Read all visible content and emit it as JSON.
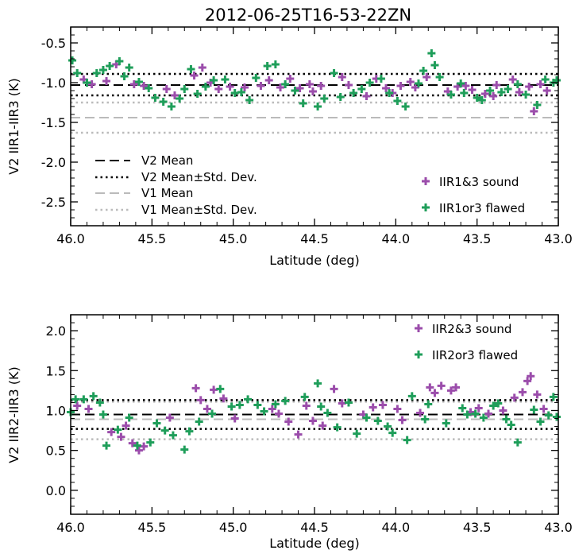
{
  "title": "2012-06-25T16-53-22ZN",
  "colors": {
    "sound": "#9b4dab",
    "flawed": "#1f9e5a",
    "v2": "#000000",
    "v1": "#bbbbbb"
  },
  "chart_data": [
    {
      "type": "scatter",
      "xlabel": "Latitude (deg)",
      "ylabel": "V2 IIR1-IIR3 (K)",
      "xlim": [
        46.0,
        43.0
      ],
      "ylim": [
        -2.8,
        -0.3
      ],
      "xticks": [
        "46.0",
        "45.5",
        "45.0",
        "44.5",
        "44.0",
        "43.5",
        "43.0"
      ],
      "yticks": [
        "-0.5",
        "-1.0",
        "-1.5",
        "-2.0",
        "-2.5"
      ],
      "lines": {
        "v2_mean": -1.03,
        "v2_std_upper": -0.89,
        "v2_std_lower": -1.16,
        "v1_mean": -1.44,
        "v1_std_upper": -1.25,
        "v1_std_lower": -1.63
      },
      "line_legend": [
        "V2 Mean",
        "V2 Mean±Std. Dev.",
        "V1 Mean",
        "V1 Mean±Std. Dev."
      ],
      "marker_legend": [
        "IIR1&3 sound",
        "IIR1or3 flawed"
      ],
      "series": [
        {
          "name": "IIR1&3 sound",
          "x": [
            45.92,
            45.87,
            45.78,
            45.72,
            45.61,
            45.55,
            45.41,
            45.36,
            45.24,
            45.19,
            45.14,
            45.09,
            45.02,
            44.93,
            44.83,
            44.78,
            44.71,
            44.65,
            44.59,
            44.53,
            44.51,
            44.46,
            44.33,
            44.29,
            44.18,
            44.12,
            44.06,
            44.02,
            43.97,
            43.91,
            43.88,
            43.81,
            43.68,
            43.62,
            43.57,
            43.53,
            43.45,
            43.4,
            43.38,
            43.28,
            43.24,
            43.18,
            43.15,
            43.11,
            43.07
          ],
          "y": [
            -0.96,
            -1.02,
            -0.98,
            -0.77,
            -1.02,
            -1.04,
            -1.08,
            -1.16,
            -0.91,
            -0.81,
            -1.0,
            -1.08,
            -1.05,
            -1.06,
            -1.04,
            -0.97,
            -1.06,
            -0.95,
            -1.07,
            -1.02,
            -1.11,
            -1.04,
            -0.93,
            -1.03,
            -1.17,
            -0.95,
            -1.07,
            -1.13,
            -1.04,
            -0.99,
            -1.06,
            -0.93,
            -1.11,
            -1.05,
            -1.04,
            -1.09,
            -1.14,
            -1.17,
            -1.03,
            -0.96,
            -1.12,
            -1.05,
            -1.36,
            -1.02,
            -1.1
          ]
        },
        {
          "name": "IIR1or3 flawed",
          "x": [
            45.99,
            45.96,
            45.9,
            45.84,
            45.8,
            45.76,
            45.7,
            45.67,
            45.64,
            45.58,
            45.52,
            45.48,
            45.43,
            45.38,
            45.33,
            45.3,
            45.26,
            45.22,
            45.17,
            45.12,
            45.05,
            44.99,
            44.95,
            44.9,
            44.86,
            44.79,
            44.74,
            44.68,
            44.62,
            44.57,
            44.48,
            44.44,
            44.38,
            44.34,
            44.26,
            44.21,
            44.16,
            44.09,
            44.04,
            43.99,
            43.94,
            43.86,
            43.83,
            43.78,
            43.76,
            43.73,
            43.66,
            43.6,
            43.58,
            43.5,
            43.47,
            43.42,
            43.35,
            43.31,
            43.25,
            43.2,
            43.13,
            43.08,
            43.03,
            43.01
          ],
          "y": [
            -0.72,
            -0.88,
            -1.0,
            -0.88,
            -0.84,
            -0.79,
            -0.73,
            -0.92,
            -0.81,
            -0.99,
            -1.07,
            -1.19,
            -1.24,
            -1.3,
            -1.2,
            -1.08,
            -0.83,
            -1.14,
            -1.05,
            -0.97,
            -0.96,
            -1.13,
            -1.12,
            -1.22,
            -0.94,
            -0.79,
            -0.77,
            -1.02,
            -1.1,
            -1.26,
            -1.3,
            -1.2,
            -0.88,
            -1.18,
            -1.13,
            -1.08,
            -1.0,
            -0.95,
            -1.13,
            -1.23,
            -1.3,
            -1.01,
            -0.85,
            -0.63,
            -0.78,
            -0.93,
            -1.15,
            -1.01,
            -1.13,
            -1.19,
            -1.22,
            -1.1,
            -1.12,
            -1.08,
            -1.02,
            -1.15,
            -1.28,
            -0.96,
            -1.0,
            -0.97
          ]
        }
      ]
    },
    {
      "type": "scatter",
      "xlabel": "Latitude (deg)",
      "ylabel": "V2 IIR2-IIR3 (K)",
      "xlim": [
        46.0,
        43.0
      ],
      "ylim": [
        -0.3,
        2.2
      ],
      "xticks": [
        "46.0",
        "45.5",
        "45.0",
        "44.5",
        "44.0",
        "43.5",
        "43.0"
      ],
      "yticks": [
        "2.0",
        "1.5",
        "1.0",
        "0.5",
        "0.0"
      ],
      "lines": {
        "v2_mean": 0.95,
        "v2_std_upper": 1.13,
        "v2_std_lower": 0.77,
        "v1_mean": 0.89,
        "v1_std_upper": 1.11,
        "v1_std_lower": 0.64
      },
      "marker_legend": [
        "IIR2&3 sound",
        "IIR2or3 flawed"
      ],
      "series": [
        {
          "name": "IIR2&3 sound",
          "x": [
            45.96,
            45.89,
            45.75,
            45.69,
            45.66,
            45.62,
            45.58,
            45.55,
            45.39,
            45.23,
            45.2,
            45.16,
            45.12,
            45.06,
            44.99,
            44.76,
            44.72,
            44.66,
            44.6,
            44.55,
            44.51,
            44.45,
            44.38,
            44.33,
            44.2,
            44.14,
            44.08,
            43.99,
            43.96,
            43.85,
            43.79,
            43.76,
            43.72,
            43.66,
            43.63,
            43.54,
            43.49,
            43.43,
            43.34,
            43.27,
            43.22,
            43.19,
            43.17,
            43.13,
            43.09
          ],
          "y": [
            1.06,
            1.02,
            0.73,
            0.67,
            0.81,
            0.59,
            0.5,
            0.55,
            0.91,
            1.28,
            1.13,
            1.02,
            1.26,
            1.15,
            0.9,
            1.02,
            0.96,
            0.86,
            0.7,
            1.06,
            0.87,
            0.81,
            1.27,
            1.09,
            0.95,
            1.04,
            1.07,
            1.02,
            0.88,
            0.97,
            1.29,
            1.22,
            1.31,
            1.25,
            1.29,
            0.98,
            1.03,
            0.96,
            1.0,
            1.16,
            1.23,
            1.37,
            1.43,
            1.2,
            1.02
          ]
        },
        {
          "name": "IIR2or3 flawed",
          "x": [
            46.0,
            45.97,
            45.92,
            45.86,
            45.82,
            45.8,
            45.78,
            45.71,
            45.64,
            45.59,
            45.51,
            45.47,
            45.42,
            45.37,
            45.3,
            45.27,
            45.21,
            45.13,
            45.08,
            45.01,
            44.96,
            44.91,
            44.85,
            44.81,
            44.74,
            44.68,
            44.56,
            44.48,
            44.46,
            44.42,
            44.36,
            44.29,
            44.24,
            44.18,
            44.11,
            44.05,
            44.02,
            43.93,
            43.9,
            43.82,
            43.8,
            43.69,
            43.59,
            43.56,
            43.51,
            43.46,
            43.4,
            43.37,
            43.32,
            43.29,
            43.25,
            43.15,
            43.11,
            43.06,
            43.03,
            43.01
          ],
          "y": [
            0.98,
            1.14,
            1.14,
            1.18,
            1.1,
            0.95,
            0.56,
            0.76,
            0.91,
            0.56,
            0.6,
            0.84,
            0.75,
            0.69,
            0.51,
            0.74,
            0.86,
            0.96,
            1.27,
            1.05,
            1.07,
            1.14,
            1.07,
            0.99,
            1.08,
            1.12,
            1.17,
            1.34,
            1.05,
            0.97,
            0.79,
            1.1,
            0.71,
            0.91,
            0.87,
            0.8,
            0.72,
            0.63,
            1.18,
            0.89,
            1.08,
            0.84,
            1.03,
            0.95,
            0.96,
            0.91,
            1.06,
            1.09,
            0.89,
            0.82,
            0.6,
            1.01,
            0.86,
            0.94,
            1.17,
            0.92
          ]
        }
      ]
    }
  ]
}
